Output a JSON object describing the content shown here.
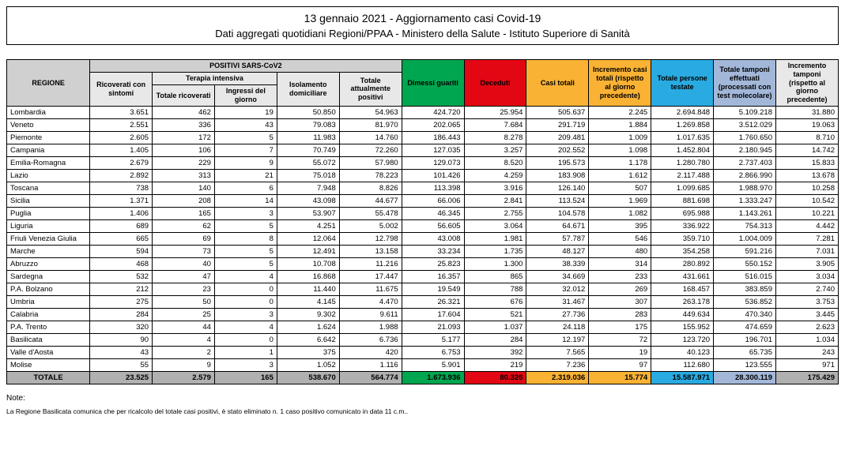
{
  "header": {
    "title": "13 gennaio 2021 - Aggiornamento casi Covid-19",
    "subtitle": "Dati aggregati quotidiani Regioni/PPAA - Ministero della Salute - Istituto Superiore di Sanità"
  },
  "columns": {
    "regione": "REGIONE",
    "positivi_group": "POSITIVI SARS-CoV2",
    "ricoverati_sintomi": "Ricoverati con sintomi",
    "terapia_intensiva_group": "Terapia intensiva",
    "totale_ricoverati": "Totale ricoverati",
    "ingressi_giorno": "Ingressi del giorno",
    "isolamento_domiciliare": "Isolamento domiciliare",
    "totale_attualmente_positivi": "Totale attualmente positivi",
    "dimessi_guariti": "Dimessi guariti",
    "deceduti": "Deceduti",
    "casi_totali": "Casi totali",
    "incremento_casi": "Incremento casi totali (rispetto al giorno precedente)",
    "totale_persone_testate": "Totale persone testate",
    "totale_tamponi": "Totale tamponi effettuati (processati con test molecolare)",
    "incremento_tamponi": "Incremento tamponi (rispetto al giorno precedente)"
  },
  "col_styles": {
    "regione": "hdr-grey",
    "positivi_group": "hdr-grey",
    "sub_positivi": "hdr-lgrey",
    "dimessi_guariti": "hdr-green",
    "deceduti": "hdr-red",
    "casi_totali": "hdr-orange",
    "incremento_casi": "hdr-orange",
    "totale_persone_testate": "hdr-blue",
    "totale_tamponi": "hdr-lblue",
    "incremento_tamponi": "hdr-lgrey"
  },
  "total_cell_styles": [
    "",
    "",
    "",
    "",
    "",
    "tot-green",
    "tot-red",
    "tot-orange",
    "tot-orange",
    "tot-blue",
    "tot-lblue",
    ""
  ],
  "rows": [
    {
      "region": "Lombardia",
      "v": [
        "3.651",
        "462",
        "19",
        "50.850",
        "54.963",
        "424.720",
        "25.954",
        "505.637",
        "2.245",
        "2.694.848",
        "5.109.218",
        "31.880"
      ]
    },
    {
      "region": "Veneto",
      "v": [
        "2.551",
        "336",
        "43",
        "79.083",
        "81.970",
        "202.065",
        "7.684",
        "291.719",
        "1.884",
        "1.269.858",
        "3.512.029",
        "19.063"
      ]
    },
    {
      "region": "Piemonte",
      "v": [
        "2.605",
        "172",
        "5",
        "11.983",
        "14.760",
        "186.443",
        "8.278",
        "209.481",
        "1.009",
        "1.017.635",
        "1.760.650",
        "8.710"
      ]
    },
    {
      "region": "Campania",
      "v": [
        "1.405",
        "106",
        "7",
        "70.749",
        "72.260",
        "127.035",
        "3.257",
        "202.552",
        "1.098",
        "1.452.804",
        "2.180.945",
        "14.742"
      ]
    },
    {
      "region": "Emilia-Romagna",
      "v": [
        "2.679",
        "229",
        "9",
        "55.072",
        "57.980",
        "129.073",
        "8.520",
        "195.573",
        "1.178",
        "1.280.780",
        "2.737.403",
        "15.833"
      ]
    },
    {
      "region": "Lazio",
      "v": [
        "2.892",
        "313",
        "21",
        "75.018",
        "78.223",
        "101.426",
        "4.259",
        "183.908",
        "1.612",
        "2.117.488",
        "2.866.990",
        "13.678"
      ]
    },
    {
      "region": "Toscana",
      "v": [
        "738",
        "140",
        "6",
        "7.948",
        "8.826",
        "113.398",
        "3.916",
        "126.140",
        "507",
        "1.099.685",
        "1.988.970",
        "10.258"
      ]
    },
    {
      "region": "Sicilia",
      "v": [
        "1.371",
        "208",
        "14",
        "43.098",
        "44.677",
        "66.006",
        "2.841",
        "113.524",
        "1.969",
        "881.698",
        "1.333.247",
        "10.542"
      ]
    },
    {
      "region": "Puglia",
      "v": [
        "1.406",
        "165",
        "3",
        "53.907",
        "55.478",
        "46.345",
        "2.755",
        "104.578",
        "1.082",
        "695.988",
        "1.143.261",
        "10.221"
      ]
    },
    {
      "region": "Liguria",
      "v": [
        "689",
        "62",
        "5",
        "4.251",
        "5.002",
        "56.605",
        "3.064",
        "64.671",
        "395",
        "336.922",
        "754.313",
        "4.442"
      ]
    },
    {
      "region": "Friuli Venezia Giulia",
      "v": [
        "665",
        "69",
        "8",
        "12.064",
        "12.798",
        "43.008",
        "1.981",
        "57.787",
        "546",
        "359.710",
        "1.004.009",
        "7.281"
      ]
    },
    {
      "region": "Marche",
      "v": [
        "594",
        "73",
        "5",
        "12.491",
        "13.158",
        "33.234",
        "1.735",
        "48.127",
        "480",
        "354.258",
        "591.216",
        "7.031"
      ]
    },
    {
      "region": "Abruzzo",
      "v": [
        "468",
        "40",
        "5",
        "10.708",
        "11.216",
        "25.823",
        "1.300",
        "38.339",
        "314",
        "280.892",
        "550.152",
        "3.905"
      ]
    },
    {
      "region": "Sardegna",
      "v": [
        "532",
        "47",
        "4",
        "16.868",
        "17.447",
        "16.357",
        "865",
        "34.669",
        "233",
        "431.661",
        "516.015",
        "3.034"
      ]
    },
    {
      "region": "P.A. Bolzano",
      "v": [
        "212",
        "23",
        "0",
        "11.440",
        "11.675",
        "19.549",
        "788",
        "32.012",
        "269",
        "168.457",
        "383.859",
        "2.740"
      ]
    },
    {
      "region": "Umbria",
      "v": [
        "275",
        "50",
        "0",
        "4.145",
        "4.470",
        "26.321",
        "676",
        "31.467",
        "307",
        "263.178",
        "536.852",
        "3.753"
      ]
    },
    {
      "region": "Calabria",
      "v": [
        "284",
        "25",
        "3",
        "9.302",
        "9.611",
        "17.604",
        "521",
        "27.736",
        "283",
        "449.634",
        "470.340",
        "3.445"
      ]
    },
    {
      "region": "P.A. Trento",
      "v": [
        "320",
        "44",
        "4",
        "1.624",
        "1.988",
        "21.093",
        "1.037",
        "24.118",
        "175",
        "155.952",
        "474.659",
        "2.623"
      ]
    },
    {
      "region": "Basilicata",
      "v": [
        "90",
        "4",
        "0",
        "6.642",
        "6.736",
        "5.177",
        "284",
        "12.197",
        "72",
        "123.720",
        "196.701",
        "1.034"
      ]
    },
    {
      "region": "Valle d'Aosta",
      "v": [
        "43",
        "2",
        "1",
        "375",
        "420",
        "6.753",
        "392",
        "7.565",
        "19",
        "40.123",
        "65.735",
        "243"
      ]
    },
    {
      "region": "Molise",
      "v": [
        "55",
        "9",
        "3",
        "1.052",
        "1.116",
        "5.901",
        "219",
        "7.236",
        "97",
        "112.680",
        "123.555",
        "971"
      ]
    }
  ],
  "totale": {
    "label": "TOTALE",
    "v": [
      "23.525",
      "2.579",
      "165",
      "538.670",
      "564.774",
      "1.673.936",
      "80.326",
      "2.319.036",
      "15.774",
      "15.587.971",
      "28.300.119",
      "175.429"
    ]
  },
  "notes": {
    "label": "Note:",
    "text": "La Regione Basilicata comunica che per ricalcolo del totale casi positivi, è stato eliminato n. 1 caso positivo comunicato in data 11 c.m.."
  }
}
